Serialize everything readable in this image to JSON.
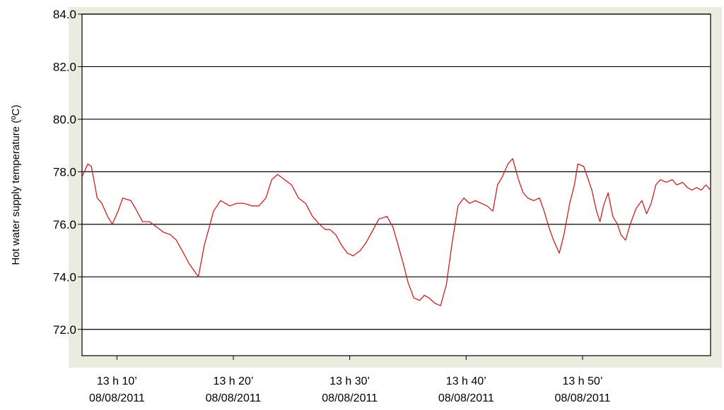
{
  "chart_data": {
    "type": "line",
    "title": "",
    "ylabel": "Hot  water  supply  temperature  (ºC)",
    "xlabel": "",
    "ylim": [
      71.0,
      84.0
    ],
    "yticks": [
      72.0,
      74.0,
      76.0,
      78.0,
      80.0,
      82.0,
      84.0
    ],
    "ytick_labels": [
      "72.0",
      "74.0",
      "76.0",
      "78.0",
      "80.0",
      "82.0",
      "84.0"
    ],
    "xlim_minutes": [
      7,
      61
    ],
    "xticks": [
      {
        "minute": 10,
        "time": "13 h 10’",
        "date": "08/08/2011"
      },
      {
        "minute": 20,
        "time": "13 h 20’",
        "date": "08/08/2011"
      },
      {
        "minute": 30,
        "time": "13 h 30’",
        "date": "08/08/2011"
      },
      {
        "minute": 40,
        "time": "13 h 40’",
        "date": "08/08/2011"
      },
      {
        "minute": 50,
        "time": "13 h 50’",
        "date": "08/08/2011"
      }
    ],
    "grid": "horizontal",
    "series": [
      {
        "color": "#cc1f1f",
        "x": [
          7.0,
          7.5,
          7.8,
          8.1,
          8.3,
          8.7,
          9.2,
          9.6,
          10.1,
          10.5,
          11.2,
          11.6,
          12.2,
          12.8,
          13.4,
          14.0,
          14.6,
          15.1,
          15.6,
          16.2,
          17.0,
          17.5,
          18.0,
          18.3,
          18.9,
          19.7,
          20.3,
          20.9,
          21.6,
          22.2,
          22.8,
          23.3,
          23.8,
          24.4,
          25.0,
          25.6,
          26.2,
          26.8,
          27.4,
          27.9,
          28.3,
          28.8,
          29.3,
          29.8,
          30.3,
          30.9,
          31.4,
          31.9,
          32.5,
          33.2,
          33.7,
          34.1,
          34.6,
          35.0,
          35.5,
          36.0,
          36.4,
          36.8,
          37.3,
          37.8,
          38.3,
          38.8,
          39.3,
          39.8,
          40.3,
          40.8,
          41.3,
          41.8,
          42.3,
          42.7,
          43.1,
          43.6,
          44.0,
          44.5,
          44.9,
          45.3,
          45.8,
          46.3,
          46.7,
          47.1,
          47.5,
          48.0,
          48.4,
          48.9,
          49.3,
          49.6,
          50.1,
          50.5,
          50.8,
          51.2,
          51.5,
          51.8,
          52.2,
          52.6,
          53.0,
          53.3,
          53.7,
          54.1,
          54.6,
          55.1,
          55.5,
          55.9,
          56.3,
          56.7,
          57.2,
          57.7,
          58.1,
          58.6,
          59.0,
          59.4,
          59.8,
          60.2,
          60.6,
          61.0
        ],
        "y": [
          77.8,
          78.3,
          78.2,
          77.5,
          77.0,
          76.8,
          76.3,
          76.0,
          76.5,
          77.0,
          76.9,
          76.6,
          76.1,
          76.1,
          75.9,
          75.7,
          75.6,
          75.4,
          75.0,
          74.5,
          74.0,
          75.2,
          76.0,
          76.5,
          76.9,
          76.7,
          76.8,
          76.8,
          76.7,
          76.7,
          77.0,
          77.7,
          77.9,
          77.7,
          77.5,
          77.0,
          76.8,
          76.3,
          76.0,
          75.8,
          75.8,
          75.6,
          75.2,
          74.9,
          74.8,
          75.0,
          75.3,
          75.7,
          76.2,
          76.3,
          75.9,
          75.3,
          74.5,
          73.8,
          73.2,
          73.1,
          73.3,
          73.2,
          73.0,
          72.9,
          73.7,
          75.3,
          76.7,
          77.0,
          76.8,
          76.9,
          76.8,
          76.7,
          76.5,
          77.5,
          77.8,
          78.3,
          78.5,
          77.7,
          77.2,
          77.0,
          76.9,
          77.0,
          76.5,
          75.9,
          75.4,
          74.9,
          75.6,
          76.8,
          77.5,
          78.3,
          78.2,
          77.7,
          77.3,
          76.5,
          76.1,
          76.7,
          77.2,
          76.3,
          76.0,
          75.6,
          75.4,
          76.0,
          76.6,
          76.9,
          76.4,
          76.8,
          77.5,
          77.7,
          77.6,
          77.7,
          77.5,
          77.6,
          77.4,
          77.3,
          77.4,
          77.3,
          77.5,
          77.3
        ]
      }
    ]
  }
}
